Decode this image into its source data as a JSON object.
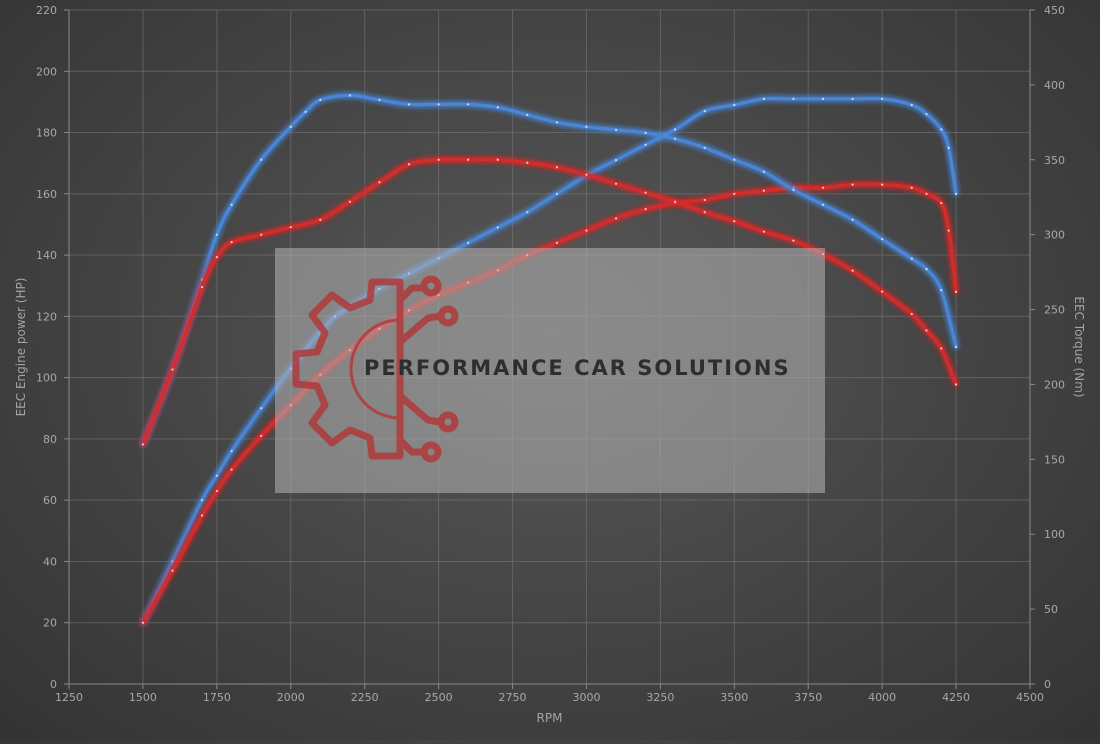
{
  "chart_data": {
    "type": "line",
    "xlabel": "RPM",
    "ylabel_left": "EEC Engine power (HP)",
    "ylabel_right": "EEC Torque (Nm)",
    "xlim": [
      1250,
      4500
    ],
    "x_ticks": [
      1250,
      1500,
      1750,
      2000,
      2250,
      2500,
      2750,
      3000,
      3250,
      3500,
      3750,
      4000,
      4250,
      4500
    ],
    "ylim_left": [
      0,
      220
    ],
    "y_ticks_left": [
      0,
      20,
      40,
      60,
      80,
      100,
      120,
      140,
      160,
      180,
      200,
      220
    ],
    "ylim_right": [
      0,
      450
    ],
    "y_ticks_right": [
      0,
      50,
      100,
      150,
      200,
      250,
      300,
      350,
      400,
      450
    ],
    "grid": true,
    "legend": "none",
    "series": [
      {
        "key": "tuned_power",
        "axis": "left",
        "color": "#4a86d8",
        "x": [
          1500,
          1600,
          1700,
          1750,
          1800,
          1900,
          2000,
          2100,
          2150,
          2200,
          2300,
          2400,
          2500,
          2600,
          2700,
          2800,
          2900,
          3000,
          3100,
          3200,
          3300,
          3400,
          3500,
          3600,
          3700,
          3800,
          3900,
          4000,
          4100,
          4150,
          4200,
          4225,
          4250
        ],
        "y": [
          20,
          40,
          60,
          68,
          76,
          90,
          103,
          115,
          120,
          123,
          129,
          134,
          139,
          144,
          149,
          154,
          160,
          166,
          171,
          176,
          181,
          187,
          189,
          191,
          191,
          191,
          191,
          191,
          189,
          186,
          181,
          175,
          160
        ]
      },
      {
        "key": "stock_power",
        "axis": "left",
        "color": "#d92b2b",
        "x": [
          1500,
          1600,
          1700,
          1750,
          1800,
          1900,
          2000,
          2100,
          2200,
          2300,
          2400,
          2500,
          2600,
          2700,
          2800,
          2900,
          3000,
          3100,
          3200,
          3300,
          3400,
          3500,
          3600,
          3700,
          3800,
          3900,
          4000,
          4100,
          4150,
          4200,
          4225,
          4250
        ],
        "y": [
          20,
          37,
          55,
          63,
          70,
          81,
          91,
          101,
          109,
          116,
          122,
          127,
          131,
          135,
          140,
          144,
          148,
          152,
          155,
          157,
          158,
          160,
          161,
          162,
          162,
          163,
          163,
          162,
          160,
          157,
          148,
          128
        ]
      },
      {
        "key": "tuned_torque",
        "axis": "right",
        "color": "#4a86d8",
        "x": [
          1500,
          1600,
          1700,
          1750,
          1800,
          1900,
          2000,
          2050,
          2100,
          2200,
          2300,
          2400,
          2500,
          2600,
          2700,
          2800,
          2900,
          3000,
          3100,
          3200,
          3300,
          3400,
          3500,
          3600,
          3700,
          3800,
          3900,
          4000,
          4100,
          4150,
          4200,
          4250
        ],
        "y": [
          160,
          210,
          270,
          300,
          320,
          350,
          372,
          382,
          390,
          393,
          390,
          387,
          387,
          387,
          385,
          380,
          375,
          372,
          370,
          368,
          364,
          358,
          350,
          342,
          330,
          320,
          310,
          297,
          284,
          277,
          263,
          225
        ]
      },
      {
        "key": "stock_torque",
        "axis": "right",
        "color": "#d92b2b",
        "x": [
          1500,
          1600,
          1700,
          1750,
          1800,
          1900,
          2000,
          2100,
          2200,
          2300,
          2400,
          2500,
          2600,
          2700,
          2800,
          2900,
          3000,
          3100,
          3200,
          3300,
          3400,
          3500,
          3600,
          3700,
          3800,
          3900,
          4000,
          4100,
          4150,
          4200,
          4250
        ],
        "y": [
          160,
          210,
          265,
          285,
          295,
          300,
          305,
          310,
          322,
          335,
          347,
          350,
          350,
          350,
          348,
          345,
          340,
          334,
          328,
          322,
          315,
          309,
          302,
          296,
          287,
          276,
          262,
          247,
          236,
          224,
          200
        ]
      }
    ]
  },
  "watermark": {
    "text": "PERFORMANCE CAR SOLUTIONS",
    "logo_icon": "gear-circuit-logo-icon"
  }
}
